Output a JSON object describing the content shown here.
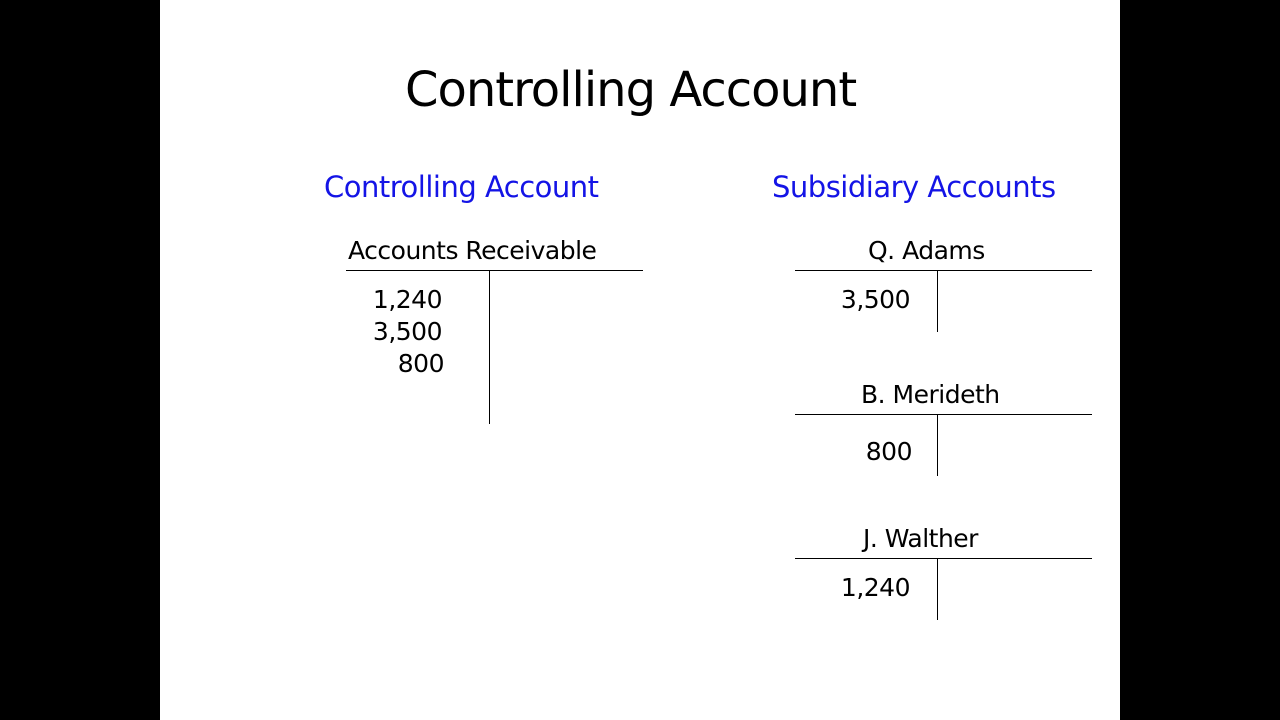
{
  "title": "Controlling Account",
  "controlling": {
    "heading": "Controlling Account",
    "account": {
      "name": "Accounts Receivable",
      "debits": [
        "1,240",
        "3,500",
        "800"
      ]
    }
  },
  "subsidiary": {
    "heading": "Subsidiary Accounts",
    "accounts": [
      {
        "name": "Q. Adams",
        "debits": [
          "3,500"
        ]
      },
      {
        "name": "B. Merideth",
        "debits": [
          "800"
        ]
      },
      {
        "name": "J. Walther",
        "debits": [
          "1,240"
        ]
      }
    ]
  },
  "colors": {
    "heading": "#1414e6",
    "background": "#ffffff"
  }
}
